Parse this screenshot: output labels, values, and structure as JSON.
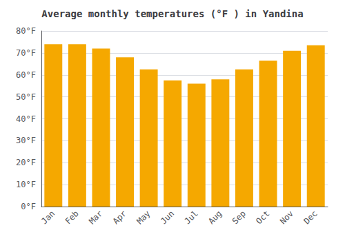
{
  "chart_data": {
    "type": "bar",
    "title": "Average monthly temperatures (°F ) in Yandina",
    "categories": [
      "Jan",
      "Feb",
      "Mar",
      "Apr",
      "May",
      "Jun",
      "Jul",
      "Aug",
      "Sep",
      "Oct",
      "Nov",
      "Dec"
    ],
    "values": [
      74.0,
      74.0,
      72.0,
      68.0,
      62.5,
      57.5,
      56.0,
      58.0,
      62.5,
      66.5,
      71.0,
      73.5
    ],
    "color": "#F5A800",
    "ylim": [
      0,
      80
    ],
    "yticks": [
      {
        "value": 0,
        "label": "0°F"
      },
      {
        "value": 10,
        "label": "10°F"
      },
      {
        "value": 20,
        "label": "20°F"
      },
      {
        "value": 30,
        "label": "30°F"
      },
      {
        "value": 40,
        "label": "40°F"
      },
      {
        "value": 50,
        "label": "50°F"
      },
      {
        "value": 60,
        "label": "60°F"
      },
      {
        "value": 70,
        "label": "70°F"
      },
      {
        "value": 80,
        "label": "80°F"
      }
    ],
    "grid": true
  }
}
